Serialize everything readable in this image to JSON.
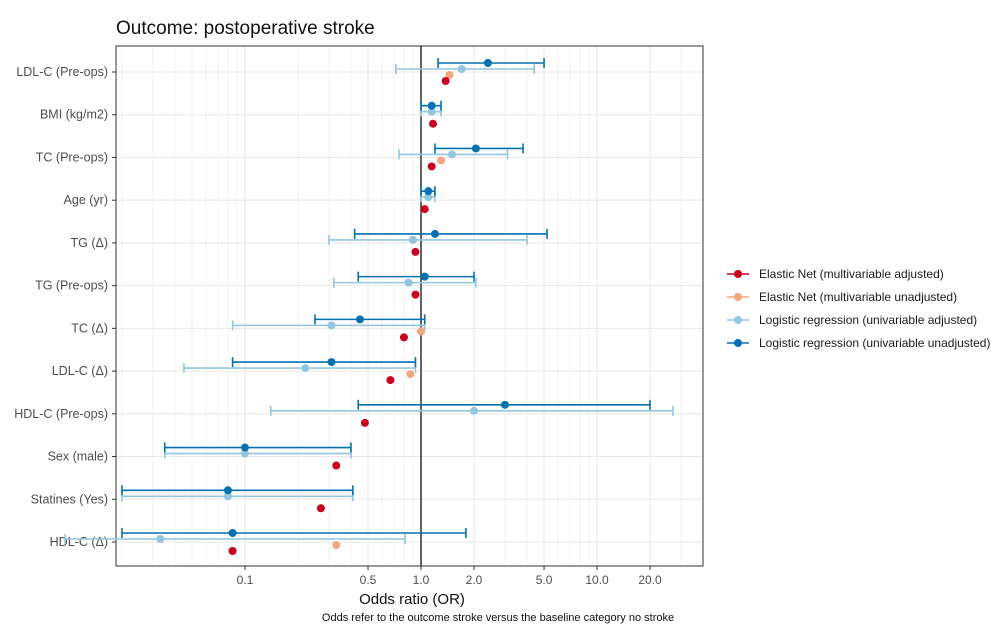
{
  "chart_data": {
    "type": "forest",
    "title": "Outcome: postoperative stroke",
    "xlabel": "Odds ratio (OR)",
    "caption": "Odds refer to the outcome stroke versus the baseline category no stroke",
    "x_scale": "log",
    "xlim": [
      0.0185,
      40
    ],
    "reference_line": 1.0,
    "x_ticks": [
      0.1,
      0.5,
      1.0,
      2.0,
      5.0,
      10.0,
      20.0
    ],
    "x_tick_labels": [
      "0.1",
      "0.5",
      "1.0",
      "2.0",
      "5.0",
      "10.0",
      "20.0"
    ],
    "grid": true,
    "legend_position": "right",
    "categories": [
      "LDL-C (Pre-ops)",
      "BMI (kg/m2)",
      "TC (Pre-ops)",
      "Age (yr)",
      "TG (Δ)",
      "TG (Pre-ops)",
      "TC (Δ)",
      "LDL-C (Δ)",
      "HDL-C (Pre-ops)",
      "Sex (male)",
      "Statines (Yes)",
      "HDL-C (Δ)"
    ],
    "series": [
      {
        "name": "Elastic Net (multivariable adjusted)",
        "color": "#ca0020",
        "points": [
          {
            "est": 1.38
          },
          {
            "est": 1.17
          },
          {
            "est": 1.15
          },
          {
            "est": 1.05
          },
          {
            "est": 0.93
          },
          {
            "est": 0.93
          },
          {
            "est": 0.8
          },
          {
            "est": 0.67
          },
          {
            "est": 0.48
          },
          {
            "est": 0.33
          },
          {
            "est": 0.27
          },
          {
            "est": 0.085
          }
        ]
      },
      {
        "name": "Elastic Net (multivariable unadjusted)",
        "color": "#f4a582",
        "points": [
          {
            "est": 1.45
          },
          null,
          {
            "est": 1.3
          },
          null,
          null,
          null,
          {
            "est": 1.0
          },
          {
            "est": 0.87
          },
          null,
          null,
          null,
          {
            "est": 0.33
          }
        ]
      },
      {
        "name": "Logistic regression (univariable adjusted)",
        "color": "#92c5de",
        "points": [
          {
            "est": 1.7,
            "lo": 0.72,
            "hi": 4.4
          },
          {
            "est": 1.15,
            "lo": 1.0,
            "hi": 1.3
          },
          {
            "est": 1.5,
            "lo": 0.75,
            "hi": 3.1
          },
          {
            "est": 1.1,
            "lo": 1.0,
            "hi": 1.2
          },
          {
            "est": 0.9,
            "lo": 0.3,
            "hi": 4.0
          },
          {
            "est": 0.85,
            "lo": 0.32,
            "hi": 2.05
          },
          {
            "est": 0.31,
            "lo": 0.085,
            "hi": 1.05
          },
          {
            "est": 0.22,
            "lo": 0.045,
            "hi": 0.93
          },
          {
            "est": 2.0,
            "lo": 0.14,
            "hi": 27.0
          },
          {
            "est": 0.1,
            "lo": 0.035,
            "hi": 0.4
          },
          {
            "est": 0.08,
            "lo": 0.02,
            "hi": 0.41
          },
          {
            "est": 0.033,
            "lo": 0.0095,
            "hi": 0.81
          }
        ]
      },
      {
        "name": "Logistic regression (univariable unadjusted)",
        "color": "#0571b0",
        "points": [
          {
            "est": 2.4,
            "lo": 1.25,
            "hi": 5.0
          },
          {
            "est": 1.15,
            "lo": 1.0,
            "hi": 1.3
          },
          {
            "est": 2.05,
            "lo": 1.2,
            "hi": 3.8
          },
          {
            "est": 1.1,
            "lo": 1.0,
            "hi": 1.2
          },
          {
            "est": 1.2,
            "lo": 0.42,
            "hi": 5.2
          },
          {
            "est": 1.05,
            "lo": 0.44,
            "hi": 2.0
          },
          {
            "est": 0.45,
            "lo": 0.25,
            "hi": 1.05
          },
          {
            "est": 0.31,
            "lo": 0.085,
            "hi": 0.93
          },
          {
            "est": 3.0,
            "lo": 0.44,
            "hi": 20.0
          },
          {
            "est": 0.1,
            "lo": 0.035,
            "hi": 0.4
          },
          {
            "est": 0.08,
            "lo": 0.02,
            "hi": 0.41
          },
          {
            "est": 0.085,
            "lo": 0.02,
            "hi": 1.8
          }
        ]
      }
    ]
  }
}
